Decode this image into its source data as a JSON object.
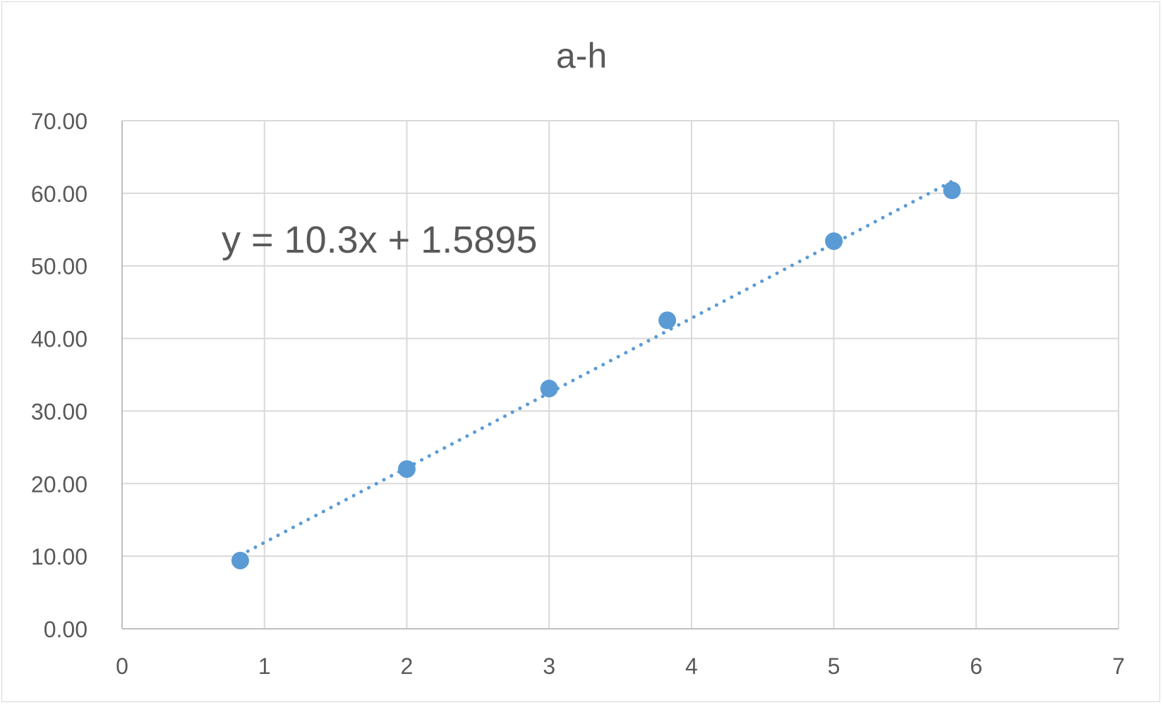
{
  "chart_data": {
    "type": "scatter",
    "title": "a-h",
    "xlabel": "",
    "ylabel": "",
    "xlim": [
      0,
      7
    ],
    "ylim": [
      0,
      70
    ],
    "x_ticks": [
      "0",
      "1",
      "2",
      "3",
      "4",
      "5",
      "6",
      "7"
    ],
    "y_ticks": [
      "0.00",
      "10.00",
      "20.00",
      "30.00",
      "40.00",
      "50.00",
      "60.00",
      "70.00"
    ],
    "grid": true,
    "legend": "none",
    "series": [
      {
        "x": [
          0.83,
          2.0,
          3.0,
          3.83,
          5.0,
          5.83
        ],
        "y": [
          9.4,
          22.0,
          33.1,
          42.5,
          53.4,
          60.4
        ],
        "color": "#5B9BD5"
      }
    ],
    "trendline": {
      "type": "linear",
      "style": "dotted",
      "color": "#5B9BD5",
      "slope": 10.3,
      "intercept": 1.5895,
      "x_range": [
        0.83,
        5.83
      ],
      "equation_label": "y = 10.3x + 1.5895"
    }
  }
}
